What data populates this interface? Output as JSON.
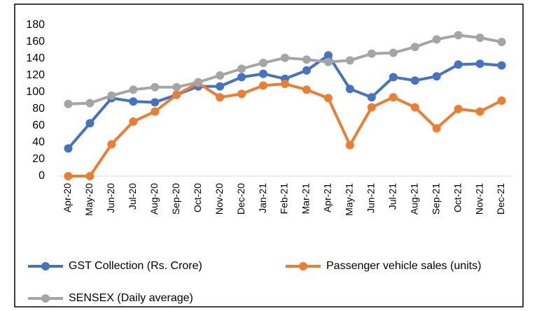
{
  "chart_data": {
    "type": "line",
    "categories": [
      "Apr-20",
      "May-20",
      "Jun-20",
      "Jul-20",
      "Aug-20",
      "Sep-20",
      "Oct-20",
      "Nov-20",
      "Dec-20",
      "Jan-21",
      "Feb-21",
      "Mar-21",
      "Apr-21",
      "May-21",
      "Jun-21",
      "Jul-21",
      "Aug-21",
      "Sep-21",
      "Oct-21",
      "Nov-21",
      "Dec-21"
    ],
    "series": [
      {
        "name": "GST Collection (Rs. Crore)",
        "color": "#4472c4",
        "values": [
          33,
          63,
          93,
          89,
          88,
          97,
          107,
          107,
          118,
          122,
          116,
          126,
          144,
          104,
          94,
          118,
          114,
          119,
          133,
          134,
          132
        ]
      },
      {
        "name": "Passenger vehicle sales (units)",
        "color": "#ed7d31",
        "values": [
          0,
          0,
          38,
          65,
          77,
          97,
          111,
          94,
          98,
          108,
          110,
          103,
          93,
          37,
          82,
          94,
          82,
          57,
          80,
          77,
          90
        ]
      },
      {
        "name": "SENSEX (Daily average)",
        "color": "#a5a5a5",
        "values": [
          86,
          87,
          96,
          103,
          106,
          106,
          112,
          120,
          128,
          135,
          141,
          139,
          136,
          138,
          146,
          147,
          154,
          163,
          168,
          165,
          160
        ]
      }
    ],
    "ylim": [
      0,
      180
    ],
    "yticks": [
      0,
      20,
      40,
      60,
      80,
      100,
      120,
      140,
      160,
      180
    ],
    "grid": false,
    "legend": "bottom"
  }
}
